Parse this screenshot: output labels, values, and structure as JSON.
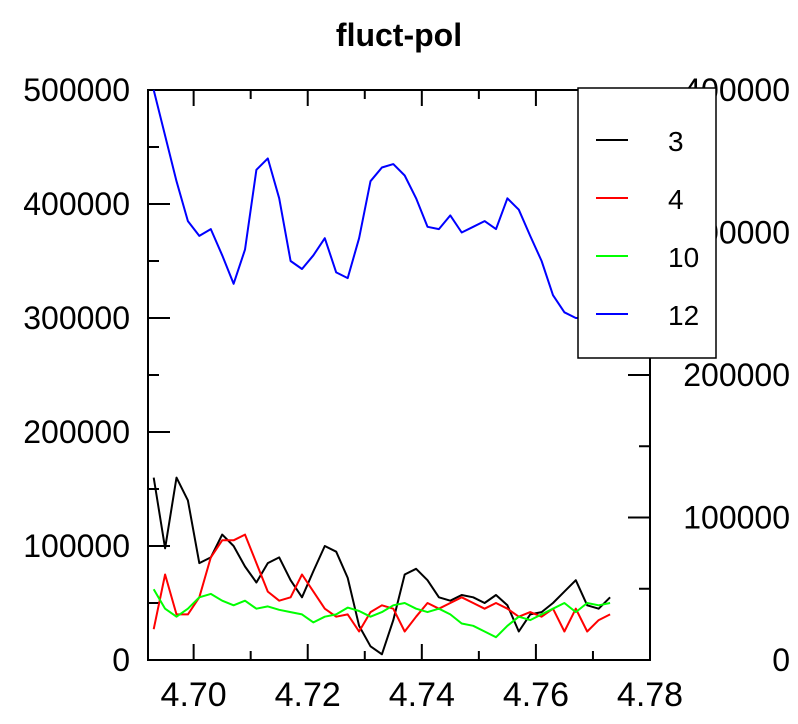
{
  "chart_data": {
    "type": "line",
    "title": "fluct-pol",
    "xlabel": "",
    "ylabel": "",
    "xlim": [
      4.692,
      4.78
    ],
    "ylim_left": [
      0,
      500000
    ],
    "ylim_right": [
      0,
      400000
    ],
    "x_ticks": [
      "4.70",
      "4.72",
      "4.74",
      "4.76",
      "4.78"
    ],
    "x_tick_values": [
      4.7,
      4.72,
      4.74,
      4.76,
      4.78
    ],
    "y_left_ticks": [
      "0",
      "100000",
      "200000",
      "300000",
      "400000",
      "500000"
    ],
    "y_left_tick_values": [
      0,
      100000,
      200000,
      300000,
      400000,
      500000
    ],
    "y_right_ticks": [
      "0",
      "100000",
      "200000",
      "300000",
      "400000"
    ],
    "y_right_tick_values": [
      0,
      100000,
      200000,
      300000,
      400000
    ],
    "grid": false,
    "legend_position": "top-right",
    "x": [
      4.693,
      4.695,
      4.697,
      4.699,
      4.701,
      4.703,
      4.705,
      4.707,
      4.709,
      4.711,
      4.713,
      4.715,
      4.717,
      4.719,
      4.721,
      4.723,
      4.725,
      4.727,
      4.729,
      4.731,
      4.733,
      4.735,
      4.737,
      4.739,
      4.741,
      4.743,
      4.745,
      4.747,
      4.749,
      4.751,
      4.753,
      4.755,
      4.757,
      4.759,
      4.761,
      4.763,
      4.765,
      4.767,
      4.769,
      4.771,
      4.773
    ],
    "series": [
      {
        "name": "3",
        "color": "#000000",
        "axis": "left",
        "values": [
          160000,
          98000,
          160000,
          140000,
          85000,
          90000,
          110000,
          100000,
          82000,
          68000,
          85000,
          90000,
          70000,
          55000,
          78000,
          100000,
          95000,
          72000,
          30000,
          12000,
          5000,
          35000,
          75000,
          80000,
          70000,
          55000,
          52000,
          57000,
          55000,
          50000,
          57000,
          48000,
          25000,
          40000,
          42000,
          50000,
          60000,
          70000,
          48000,
          45000,
          55000
        ]
      },
      {
        "name": "4",
        "color": "#ff0000",
        "axis": "left",
        "values": [
          27000,
          75000,
          40000,
          40000,
          55000,
          90000,
          105000,
          105000,
          110000,
          85000,
          60000,
          52000,
          55000,
          75000,
          60000,
          45000,
          38000,
          40000,
          25000,
          42000,
          48000,
          45000,
          25000,
          38000,
          50000,
          45000,
          50000,
          55000,
          50000,
          45000,
          50000,
          45000,
          38000,
          42000,
          38000,
          45000,
          25000,
          45000,
          25000,
          35000,
          40000
        ]
      },
      {
        "name": "10",
        "color": "#00ff00",
        "axis": "left",
        "values": [
          62000,
          45000,
          38000,
          45000,
          55000,
          58000,
          52000,
          48000,
          52000,
          45000,
          47000,
          44000,
          42000,
          40000,
          33000,
          38000,
          40000,
          46000,
          43000,
          38000,
          42000,
          48000,
          50000,
          45000,
          42000,
          45000,
          40000,
          32000,
          30000,
          25000,
          20000,
          30000,
          38000,
          35000,
          40000,
          45000,
          50000,
          42000,
          50000,
          48000,
          50000
        ]
      },
      {
        "name": "12",
        "color": "#0000ff",
        "axis": "left",
        "values": [
          500000,
          460000,
          420000,
          385000,
          372000,
          378000,
          355000,
          330000,
          360000,
          430000,
          440000,
          405000,
          350000,
          343000,
          355000,
          370000,
          340000,
          335000,
          370000,
          420000,
          432000,
          435000,
          425000,
          405000,
          380000,
          378000,
          390000,
          375000,
          380000,
          385000,
          378000,
          405000,
          395000,
          372000,
          350000,
          320000,
          305000,
          300000,
          300000,
          300000,
          300000
        ]
      }
    ]
  }
}
